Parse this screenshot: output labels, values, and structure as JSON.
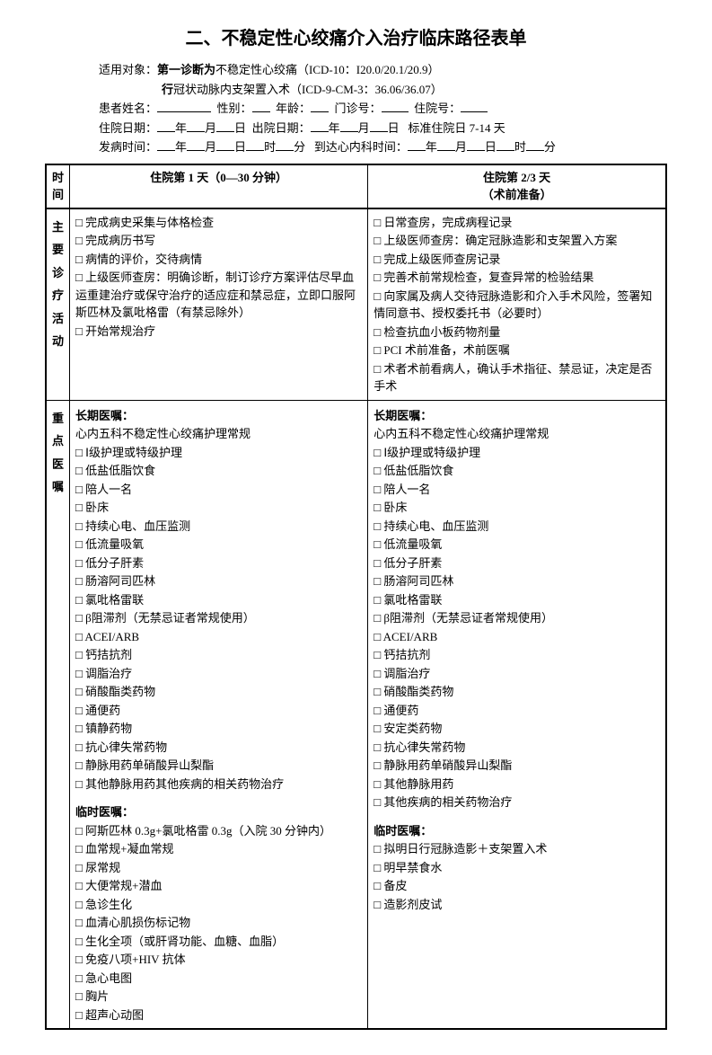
{
  "title": "二、不稳定性心绞痛介入治疗临床路径表单",
  "header": {
    "line1_prefix": "适用对象：",
    "line1_bold": "第一诊断为",
    "line1_rest": "不稳定性心绞痛（ICD-10：I20.0/20.1/20.9）",
    "line2_bold": "行",
    "line2_rest": "冠状动脉内支架置入术（ICD-9-CM-3：36.06/36.07）",
    "name_label": "患者姓名：",
    "sex_label": "性别：",
    "age_label": "年龄：",
    "clinic_label": "门诊号：",
    "inpatient_label": "住院号：",
    "admit_label": "住院日期：",
    "discharge_label": "出院日期：",
    "std_days": "标准住院日 7-14 天",
    "onset_label": "发病时间：",
    "arrive_label": "到达心内科时间：",
    "y": "年",
    "m": "月",
    "d": "日",
    "h": "时",
    "min": "分"
  },
  "columns": {
    "time": "时间",
    "day1": "住院第 1 天（0—30 分钟）",
    "day23_line1": "住院第 2/3 天",
    "day23_line2": "（术前准备）"
  },
  "rowlabels": {
    "activities": [
      "主",
      "要",
      "诊",
      "疗",
      "活",
      "动"
    ],
    "orders": [
      "重",
      "点",
      "医",
      "嘱"
    ]
  },
  "activities": {
    "day1": [
      "□ 完成病史采集与体格检查",
      "□ 完成病历书写",
      "□ 病情的评价，交待病情",
      "□ 上级医师查房：明确诊断，制订诊疗方案评估尽早血运重建治疗或保守治疗的适应症和禁忌症，立即口服阿斯匹林及氯吡格雷（有禁忌除外）",
      "□ 开始常规治疗"
    ],
    "day23": [
      "□ 日常查房，完成病程记录",
      "□ 上级医师查房：确定冠脉造影和支架置入方案",
      "□ 完成上级医师查房记录",
      "□ 完善术前常规检查，复查异常的检验结果",
      "□ 向家属及病人交待冠脉造影和介入手术风险，签署知情同意书、授权委托书（必要时）",
      "□ 检查抗血小板药物剂量",
      "□ PCI 术前准备，术前医嘱",
      "□ 术者术前看病人，确认手术指征、禁忌证，决定是否手术"
    ]
  },
  "orders": {
    "long_label": "长期医嘱：",
    "temp_label": "临时医嘱：",
    "day1_routine": "心内五科不稳定性心绞痛护理常规",
    "day1_long": [
      "□ Ⅰ级护理或特级护理",
      "□ 低盐低脂饮食",
      "□ 陪人一名",
      "□ 卧床",
      "□ 持续心电、血压监测",
      "□ 低流量吸氧",
      "□ 低分子肝素",
      "□ 肠溶阿司匹林",
      "□ 氯吡格雷联",
      "□ β阻滞剂（无禁忌证者常规使用）",
      "□ ACEI/ARB",
      "□ 钙拮抗剂",
      "□ 调脂治疗",
      "□ 硝酸酯类药物",
      "□ 通便药",
      "□ 镇静药物",
      "□ 抗心律失常药物",
      "□ 静脉用药单硝酸异山梨酯",
      "□ 其他静脉用药其他疾病的相关药物治疗"
    ],
    "day1_temp": [
      "□ 阿斯匹林 0.3g+氯吡格雷 0.3g（入院 30 分钟内）",
      "□ 血常规+凝血常规",
      "□ 尿常规",
      "□ 大便常规+潜血",
      "□ 急诊生化",
      "□ 血清心肌损伤标记物",
      "□ 生化全项（或肝肾功能、血糖、血脂）",
      "□ 免疫八项+HIV 抗体",
      "□ 急心电图",
      "□ 胸片",
      "□ 超声心动图"
    ],
    "day23_routine": "心内五科不稳定性心绞痛护理常规",
    "day23_long": [
      "□ Ⅰ级护理或特级护理",
      "□ 低盐低脂饮食",
      "□ 陪人一名",
      "□ 卧床",
      "□ 持续心电、血压监测",
      "□ 低流量吸氧",
      "□ 低分子肝素",
      "□ 肠溶阿司匹林",
      "□ 氯吡格雷联",
      "□ β阻滞剂（无禁忌证者常规使用）",
      "□ ACEI/ARB",
      "□ 钙拮抗剂",
      "□ 调脂治疗",
      "□ 硝酸酯类药物",
      "□ 通便药",
      "□ 安定类药物",
      "□ 抗心律失常药物",
      "□ 静脉用药单硝酸异山梨酯",
      "□ 其他静脉用药",
      "□ 其他疾病的相关药物治疗"
    ],
    "day23_temp": [
      "□ 拟明日行冠脉造影＋支架置入术",
      "□ 明早禁食水",
      "□ 备皮",
      "□ 造影剂皮试"
    ]
  }
}
